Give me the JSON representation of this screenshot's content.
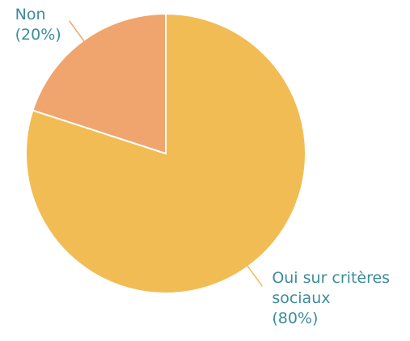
{
  "chart_data": {
    "type": "pie",
    "categories": [
      "Oui sur critères sociaux",
      "Non"
    ],
    "values": [
      80,
      20
    ],
    "value_labels": [
      "(80%)",
      "(20%)"
    ],
    "colors": [
      "#f2bc54",
      "#f0a46e"
    ]
  }
}
